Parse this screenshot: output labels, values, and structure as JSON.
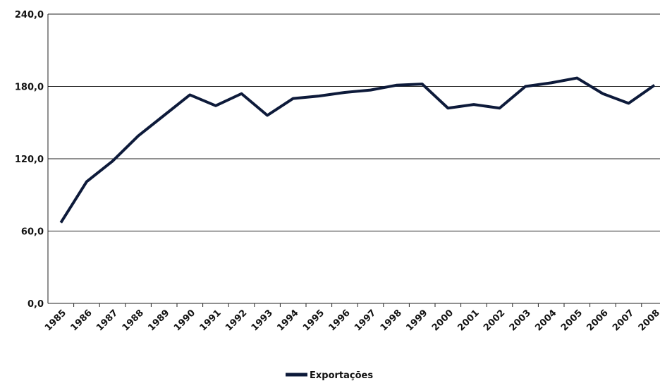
{
  "chart_data": {
    "type": "line",
    "categories": [
      "1985",
      "1986",
      "1987",
      "1988",
      "1989",
      "1990",
      "1991",
      "1992",
      "1993",
      "1994",
      "1995",
      "1996",
      "1997",
      "1998",
      "1999",
      "2000",
      "2001",
      "2002",
      "2003",
      "2004",
      "2005",
      "2006",
      "2007",
      "2008"
    ],
    "series": [
      {
        "name": "Exportações",
        "color": "#0d1a3a",
        "values": [
          67,
          101,
          118,
          139,
          156,
          173,
          164,
          174,
          156,
          170,
          172,
          175,
          177,
          181,
          182,
          162,
          165,
          162,
          180,
          183,
          187,
          174,
          166,
          181
        ]
      }
    ],
    "ylim": [
      0,
      240
    ],
    "yticks": [
      {
        "value": 0,
        "label": "0,0"
      },
      {
        "value": 60,
        "label": "60,0"
      },
      {
        "value": 120,
        "label": "120,0"
      },
      {
        "value": 180,
        "label": "180,0"
      },
      {
        "value": 240,
        "label": "240,0"
      }
    ],
    "grid": true,
    "legend": "bottom"
  }
}
